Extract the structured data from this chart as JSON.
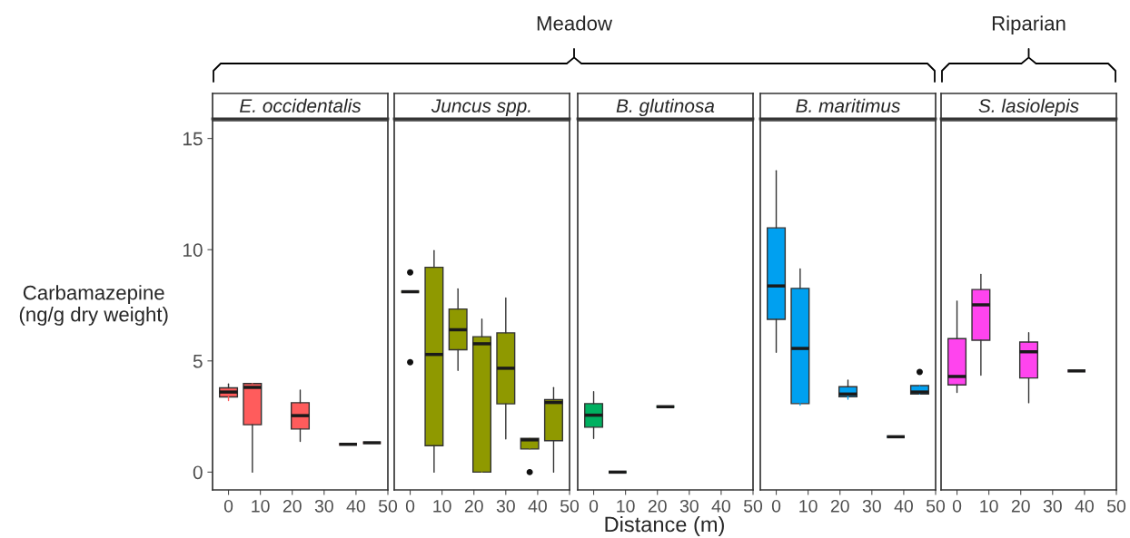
{
  "chart_data": [
    {
      "type": "box",
      "title": "E. occidentalis",
      "ylabel": "Carbamazepine\n(ng/g dry weight)",
      "annotations": [
        "Meadow"
      ],
      "color": "#ff5c5c",
      "x": [
        0,
        7.5,
        22.5,
        37.5,
        45
      ],
      "xlim": [
        -5,
        50
      ],
      "xticks": [
        0,
        10,
        20,
        30,
        40,
        50
      ],
      "ylim": [
        -0.8,
        15.8
      ],
      "yticks": [
        0,
        5,
        10,
        15
      ],
      "grid": false,
      "boxes": [
        {
          "low": 3.22,
          "q1": 3.38,
          "median": 3.6,
          "q3": 3.79,
          "high": 3.96
        },
        {
          "low": 0,
          "q1": 2.13,
          "median": 3.81,
          "q3": 3.98,
          "high": 3.98
        },
        {
          "low": 1.38,
          "q1": 1.94,
          "median": 2.54,
          "q3": 3.12,
          "high": 3.69
        },
        {
          "low": 1.25,
          "q1": 1.25,
          "median": 1.25,
          "q3": 1.25,
          "high": 1.25
        },
        {
          "low": 1.32,
          "q1": 1.32,
          "median": 1.32,
          "q3": 1.32,
          "high": 1.32
        }
      ]
    },
    {
      "type": "box",
      "title": "Juncus spp.",
      "color": "#8f9900",
      "x": [
        0,
        7.5,
        15,
        22.5,
        30,
        37.5,
        45
      ],
      "xlim": [
        -5,
        50
      ],
      "xticks": [
        0,
        10,
        20,
        30,
        40,
        50
      ],
      "ylim": [
        -0.8,
        15.8
      ],
      "tick_labels": "x",
      "grid": false,
      "boxes": [
        {
          "low": 8.11,
          "q1": 8.11,
          "median": 8.11,
          "q3": 8.11,
          "high": 8.11,
          "outliers": [
            8.98,
            4.94
          ]
        },
        {
          "low": 0,
          "q1": 1.19,
          "median": 5.29,
          "q3": 9.21,
          "high": 9.96
        },
        {
          "low": 4.57,
          "q1": 5.5,
          "median": 6.4,
          "q3": 7.33,
          "high": 8.24
        },
        {
          "low": 0,
          "q1": 0,
          "median": 5.77,
          "q3": 6.09,
          "high": 6.88
        },
        {
          "low": 1.49,
          "q1": 3.07,
          "median": 4.67,
          "q3": 6.26,
          "high": 7.83
        },
        {
          "low": 1.04,
          "q1": 1.04,
          "median": 1.45,
          "q3": 1.52,
          "high": 1.52,
          "outliers": [
            0
          ]
        },
        {
          "low": 0,
          "q1": 1.41,
          "median": 3.13,
          "q3": 3.26,
          "high": 3.8
        }
      ]
    },
    {
      "type": "box",
      "title": "B. glutinosa",
      "xlabel": "Distance (m)",
      "color": "#00b060",
      "x": [
        0,
        7.5,
        22.5
      ],
      "xlim": [
        -5,
        50
      ],
      "xticks": [
        0,
        10,
        20,
        30,
        40,
        50
      ],
      "ylim": [
        -0.8,
        15.8
      ],
      "tick_labels": "x",
      "grid": false,
      "boxes": [
        {
          "low": 1.51,
          "q1": 2.02,
          "median": 2.56,
          "q3": 3.08,
          "high": 3.62
        },
        {
          "low": 0,
          "q1": 0,
          "median": 0,
          "q3": 0,
          "high": 0
        },
        {
          "low": 2.94,
          "q1": 2.94,
          "median": 2.94,
          "q3": 2.94,
          "high": 2.94
        }
      ]
    },
    {
      "type": "box",
      "title": "B. maritimus",
      "color": "#00a0f0",
      "x": [
        0,
        7.5,
        22.5,
        37.5,
        45
      ],
      "xlim": [
        -5,
        50
      ],
      "xticks": [
        0,
        10,
        20,
        30,
        40,
        50
      ],
      "ylim": [
        -0.8,
        15.8
      ],
      "tick_labels": "x",
      "grid": false,
      "boxes": [
        {
          "low": 5.39,
          "q1": 6.87,
          "median": 8.37,
          "q3": 10.98,
          "high": 13.55
        },
        {
          "low": 3.01,
          "q1": 3.08,
          "median": 5.56,
          "q3": 8.26,
          "high": 9.13
        },
        {
          "low": 3.28,
          "q1": 3.39,
          "median": 3.51,
          "q3": 3.84,
          "high": 4.14
        },
        {
          "low": 1.59,
          "q1": 1.59,
          "median": 1.59,
          "q3": 1.59,
          "high": 1.59
        },
        {
          "low": 3.51,
          "q1": 3.51,
          "median": 3.6,
          "q3": 3.89,
          "high": 3.89,
          "outliers": [
            4.5
          ]
        }
      ]
    },
    {
      "type": "box",
      "title": "S. lasiolepis",
      "annotations": [
        "Riparian"
      ],
      "color": "#ff44ee",
      "x": [
        0,
        7.5,
        22.5,
        37.5
      ],
      "xlim": [
        -5,
        50
      ],
      "xticks": [
        0,
        10,
        20,
        30,
        40,
        50
      ],
      "ylim": [
        -0.8,
        15.8
      ],
      "tick_labels": "x",
      "grid": false,
      "boxes": [
        {
          "low": 3.58,
          "q1": 3.92,
          "median": 4.3,
          "q3": 6.0,
          "high": 7.69
        },
        {
          "low": 4.36,
          "q1": 5.93,
          "median": 7.52,
          "q3": 8.21,
          "high": 8.89
        },
        {
          "low": 3.12,
          "q1": 4.23,
          "median": 5.41,
          "q3": 5.85,
          "high": 6.27
        },
        {
          "low": 4.55,
          "q1": 4.55,
          "median": 4.55,
          "q3": 4.55,
          "high": 4.55
        }
      ]
    }
  ]
}
